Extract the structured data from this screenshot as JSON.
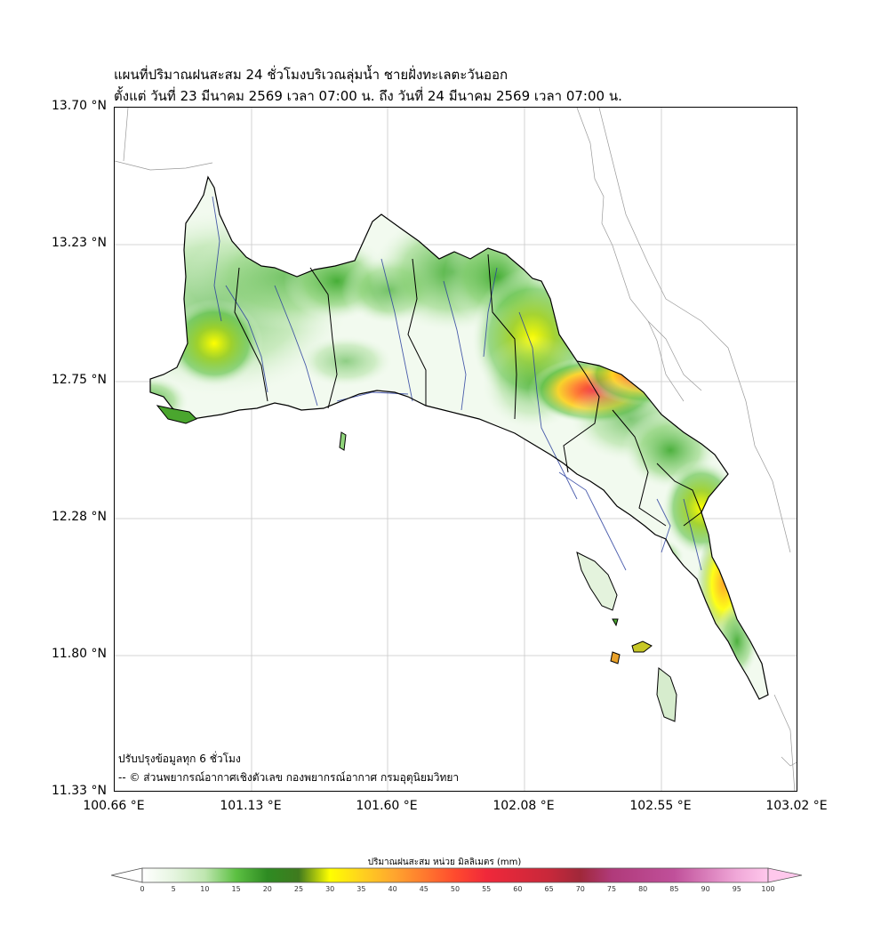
{
  "title_line1": "แผนที่ปริมาณฝนสะสม 24 ชั่วโมงบริเวณลุ่มน้ำ ชายฝั่งทะเลตะวันออก",
  "title_line2": "ตั้งแต่ วันที่ 23 มีนาคม 2569 เวลา 07:00 น. ถึง วันที่ 24 มีนาคม 2569 เวลา 07:00 น.",
  "axes": {
    "lat_labels": [
      "13.70 °N",
      "13.23 °N",
      "12.75 °N",
      "12.28 °N",
      "11.80 °N",
      "11.33 °N"
    ],
    "lon_labels": [
      "100.66 °E",
      "101.13 °E",
      "101.60 °E",
      "102.08 °E",
      "102.55 °E",
      "103.02 °E"
    ],
    "lat_range": [
      11.33,
      13.7
    ],
    "lon_range": [
      100.66,
      103.02
    ],
    "grid": true
  },
  "notes": {
    "update": "ปรับปรุงข้อมูลทุก 6 ชั่วโมง",
    "credit": "-- © ส่วนพยากรณ์อากาศเชิงตัวเลข กองพยากรณ์อากาศ กรมอุตุนิยมวิทยา"
  },
  "colorbar": {
    "title": "ปริมาณฝนสะสม หน่วย มิลลิเมตร (mm)",
    "ticks": [
      "0",
      "5",
      "10",
      "15",
      "20",
      "25",
      "30",
      "35",
      "40",
      "45",
      "50",
      "55",
      "60",
      "65",
      "70",
      "75",
      "80",
      "85",
      "90",
      "95",
      "100"
    ],
    "colors": [
      "#ffffff",
      "#e6f5e0",
      "#bfe6b0",
      "#8fd47a",
      "#5cc042",
      "#3aa82a",
      "#2e8b22",
      "#3f7a1e",
      "#9ccf1e",
      "#ffff00",
      "#ffd21e",
      "#ffa82e",
      "#ff7a2e",
      "#ff4a2e",
      "#f0283a",
      "#c8283a",
      "#a0283a",
      "#b03a7a",
      "#c0509a",
      "#d878b8",
      "#f0a8d8",
      "#ffc8ec"
    ]
  },
  "rain_hotspots": [
    {
      "lon": 101.0,
      "lat": 12.88,
      "mm": 33
    },
    {
      "lon": 101.92,
      "lat": 13.05,
      "mm": 18
    },
    {
      "lon": 102.1,
      "lat": 12.9,
      "mm": 32
    },
    {
      "lon": 102.25,
      "lat": 12.73,
      "mm": 55
    },
    {
      "lon": 102.4,
      "lat": 12.77,
      "mm": 52
    },
    {
      "lon": 102.72,
      "lat": 12.3,
      "mm": 30
    },
    {
      "lon": 102.78,
      "lat": 12.1,
      "mm": 38
    },
    {
      "lon": 102.82,
      "lat": 11.95,
      "mm": 25
    },
    {
      "lon": 101.3,
      "lat": 13.12,
      "mm": 14
    },
    {
      "lon": 101.38,
      "lat": 12.67,
      "mm": 12
    }
  ],
  "colors": {
    "basin_outline": "#000000",
    "rivers": "#2a3f9e",
    "grid": "#c8c8c8",
    "country_border": "#999999"
  }
}
